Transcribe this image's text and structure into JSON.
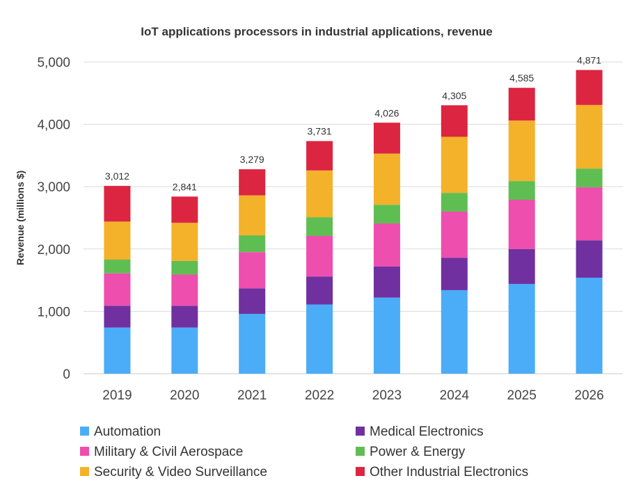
{
  "chart_data": {
    "type": "bar",
    "stacked": true,
    "title": "IoT applications processors in industrial applications, revenue",
    "xlabel": "",
    "ylabel": "Revenue  (millions $)",
    "ylim": [
      0,
      5000
    ],
    "yticks": [
      0,
      1000,
      2000,
      3000,
      4000,
      5000
    ],
    "ytick_labels": [
      "0",
      "1,000",
      "2,000",
      "3,000",
      "4,000",
      "5,000"
    ],
    "grid": true,
    "legend_position": "bottom",
    "categories": [
      "2019",
      "2020",
      "2021",
      "2022",
      "2023",
      "2024",
      "2025",
      "2026"
    ],
    "series": [
      {
        "name": "Automation",
        "color": "#4BACF7",
        "values": [
          740,
          740,
          960,
          1110,
          1220,
          1340,
          1440,
          1540
        ]
      },
      {
        "name": "Medical Electronics",
        "color": "#7030A0",
        "values": [
          350,
          350,
          410,
          450,
          500,
          520,
          560,
          600
        ]
      },
      {
        "name": "Military & Civil Aerospace",
        "color": "#EE4EAE",
        "values": [
          520,
          500,
          580,
          650,
          690,
          740,
          790,
          850
        ]
      },
      {
        "name": "Power & Energy",
        "color": "#5FBE52",
        "values": [
          220,
          220,
          270,
          300,
          300,
          300,
          300,
          300
        ]
      },
      {
        "name": "Security & Video Surveillance",
        "color": "#F4B12A",
        "values": [
          610,
          610,
          640,
          750,
          820,
          900,
          970,
          1020
        ]
      },
      {
        "name": "Other Industrial Electronics",
        "color": "#DC2540",
        "values": [
          572,
          421,
          419,
          471,
          496,
          505,
          525,
          561
        ]
      }
    ],
    "totals": [
      3012,
      2841,
      3279,
      3731,
      4026,
      4305,
      4585,
      4871
    ],
    "total_labels": [
      "3,012",
      "2,841",
      "3,279",
      "3,731",
      "4,026",
      "4,305",
      "4,585",
      "4,871"
    ]
  }
}
